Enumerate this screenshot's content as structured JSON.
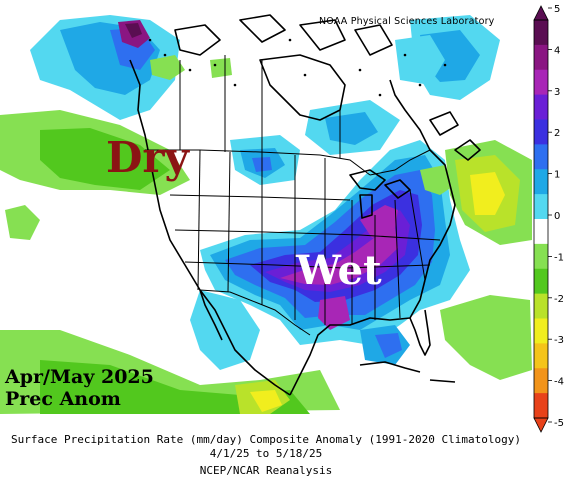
{
  "credit": "NOAA Physical Sciences Laboratory",
  "annotations": {
    "dry": "Dry",
    "wet": "Wet",
    "period": "Apr/May 2025",
    "variable": "Prec Anom"
  },
  "caption": {
    "line1": "Surface Precipitation Rate (mm/day) Composite Anomaly (1991-2020 Climatology)",
    "line2": "4/1/25 to 5/18/25",
    "line3": "NCEP/NCAR Reanalysis"
  },
  "colorbar": {
    "units": "mm/day",
    "ticks": [
      "5",
      "4",
      "3",
      "2",
      "1",
      "0",
      "-1",
      "-2",
      "-3",
      "-4",
      "-5"
    ],
    "bins": [
      {
        "range": "4 to 5",
        "color": "#5a0e52"
      },
      {
        "range": "3 to 4",
        "color": "#8a1682"
      },
      {
        "range": "2.5 to 3",
        "color": "#a826b6"
      },
      {
        "range": "2 to 2.5",
        "color": "#6a1fd6"
      },
      {
        "range": "1.5 to 2",
        "color": "#3b30e0"
      },
      {
        "range": "1 to 1.5",
        "color": "#2e6ff0"
      },
      {
        "range": "0.5 to 1",
        "color": "#1fa8e6"
      },
      {
        "range": "0.25 to 0.5",
        "color": "#53d8f0"
      },
      {
        "range": "-0.25 to 0.25",
        "color": "#ffffff"
      },
      {
        "range": "-0.5 to -0.25",
        "color": "#86e052"
      },
      {
        "range": "-1 to -0.5",
        "color": "#52c81e"
      },
      {
        "range": "-2 to -1",
        "color": "#b9e22a"
      },
      {
        "range": "-2.5 to -2",
        "color": "#f1ee1e"
      },
      {
        "range": "-3 to -2.5",
        "color": "#f4c41a"
      },
      {
        "range": "-4 to -3",
        "color": "#f2941a"
      },
      {
        "range": "-5 to -4",
        "color": "#e8421a"
      }
    ]
  },
  "regions": [
    {
      "id": "southeast-wet",
      "category": "1.5 to 2"
    },
    {
      "id": "lower-mississippi-core",
      "category": "2.5 to 3"
    },
    {
      "id": "northwest-dry",
      "category": "-1 to -0.5"
    },
    {
      "id": "atlantic-dry",
      "category": "-2.5 to -2"
    },
    {
      "id": "alaska-wet",
      "category": "2.5 to 3"
    }
  ]
}
